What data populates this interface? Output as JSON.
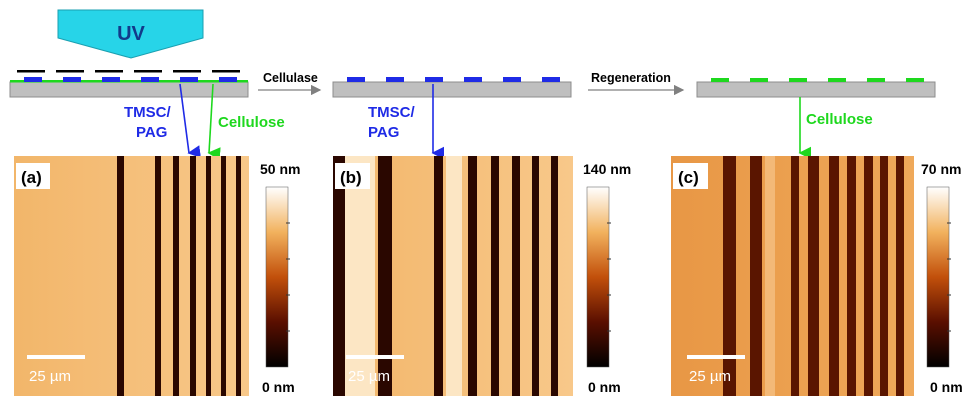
{
  "uv_label": "UV",
  "steps": {
    "step1": "Cellulase",
    "step2": "Regeneration"
  },
  "annotations": {
    "tmsc_line1": "TMSC/",
    "tmsc_line2": "PAG",
    "cellulose": "Cellulose"
  },
  "panels": [
    {
      "tag": "(a)",
      "scale_max": "50 nm",
      "scale_min": "0 nm",
      "scalebar": "25 µm"
    },
    {
      "tag": "(b)",
      "scale_max": "140 nm",
      "scale_min": "0 nm",
      "scalebar": "25 µm"
    },
    {
      "tag": "(c)",
      "scale_max": "70 nm",
      "scale_min": "0 nm",
      "scalebar": "25 µm"
    }
  ],
  "colors": {
    "uv": "#27D4E8",
    "tmsc": "#1F2BE6",
    "cellulose": "#1ED81E",
    "substrate": "#BFBFBF",
    "mask": "#000000"
  }
}
